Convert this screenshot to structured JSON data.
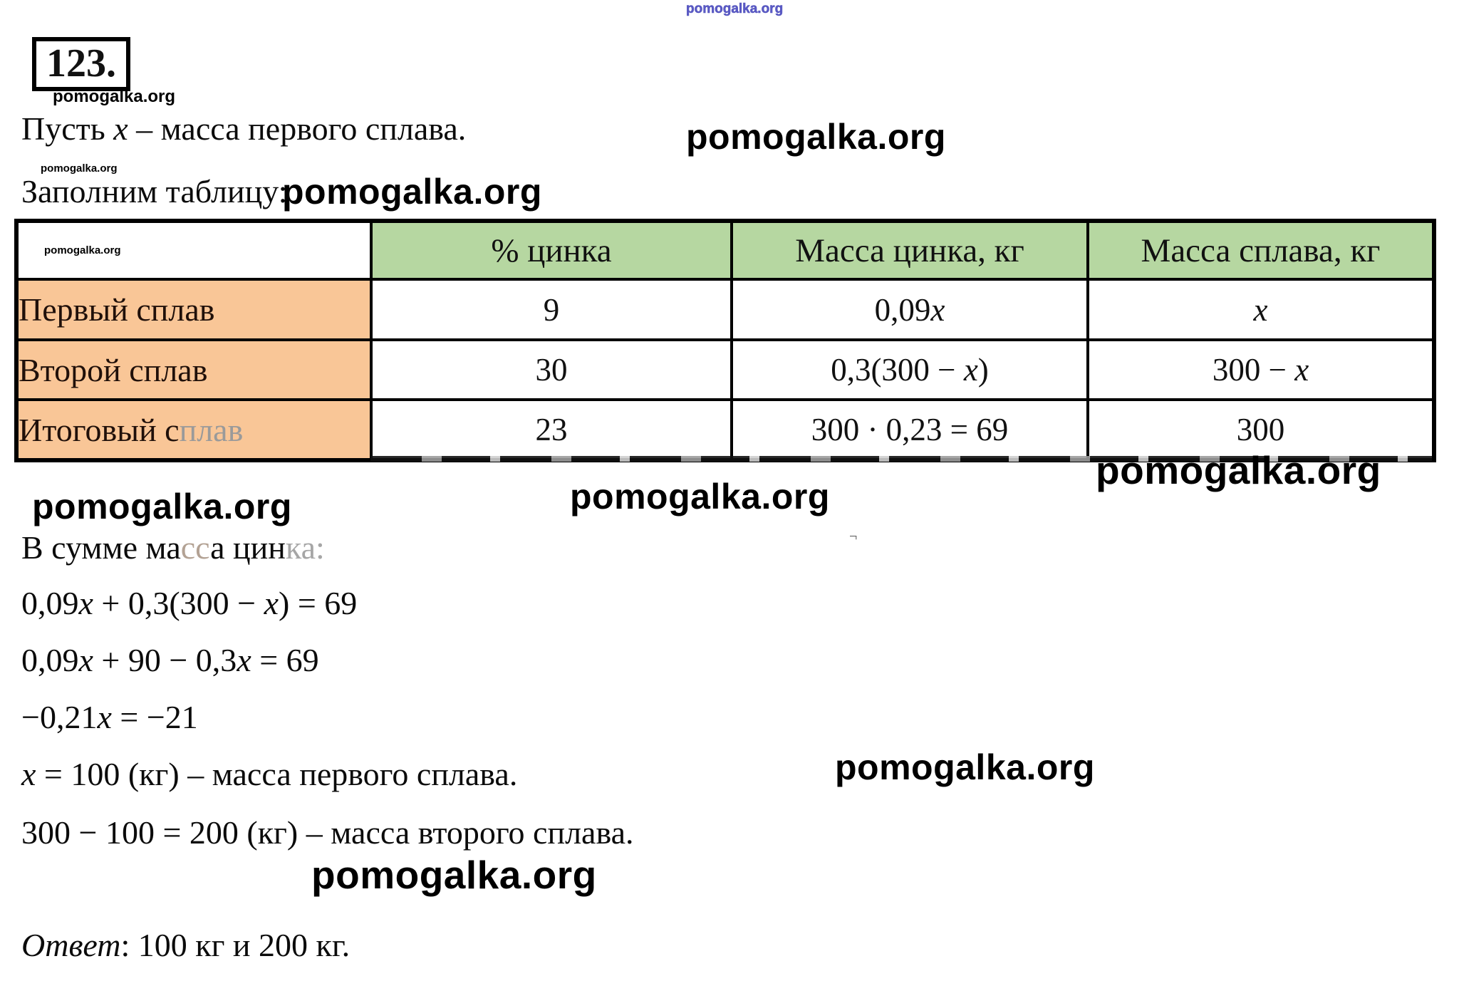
{
  "watermark": {
    "text": "pomogalka.org"
  },
  "header": {
    "problem_number": "123.",
    "intro_line": "Пусть x – масса первого сплава.",
    "fill_table_label": "Заполним таблицу:"
  },
  "table": {
    "columns": [
      "",
      "% цинка",
      "Масса цинка, кг",
      "Масса сплава, кг"
    ],
    "rows": [
      {
        "label": "Первый сплав",
        "percent": "9",
        "zinc_mass": "0,09x",
        "alloy_mass": "x"
      },
      {
        "label": "Второй сплав",
        "percent": "30",
        "zinc_mass": "0,3(300 − x)",
        "alloy_mass": "300 − x"
      },
      {
        "label_main": "Итоговый с",
        "label_faded": "плав",
        "percent": "23",
        "zinc_mass": "300 · 0,23 = 69",
        "alloy_mass": "300"
      }
    ]
  },
  "solution": {
    "zinc_sum_parts": [
      "В сумме ма",
      "сс",
      "а цин",
      "ка:"
    ],
    "equations": [
      "0,09x + 0,3(300 − x) = 69",
      "0,09x + 90 − 0,3x = 69",
      "−0,21x = −21",
      "x = 100 (кг) – масса первого сплава.",
      "300 − 100 = 200 (кг) – масса второго сплава."
    ],
    "answer_label": "Ответ",
    "answer_rest": ": 100 кг и 200 кг.",
    "stray_mark": "¬"
  },
  "colors": {
    "header_green": "#b6d7a1",
    "label_orange": "#f9c697",
    "watermark_blue": "#4a4ac0",
    "border_black": "#000000"
  }
}
